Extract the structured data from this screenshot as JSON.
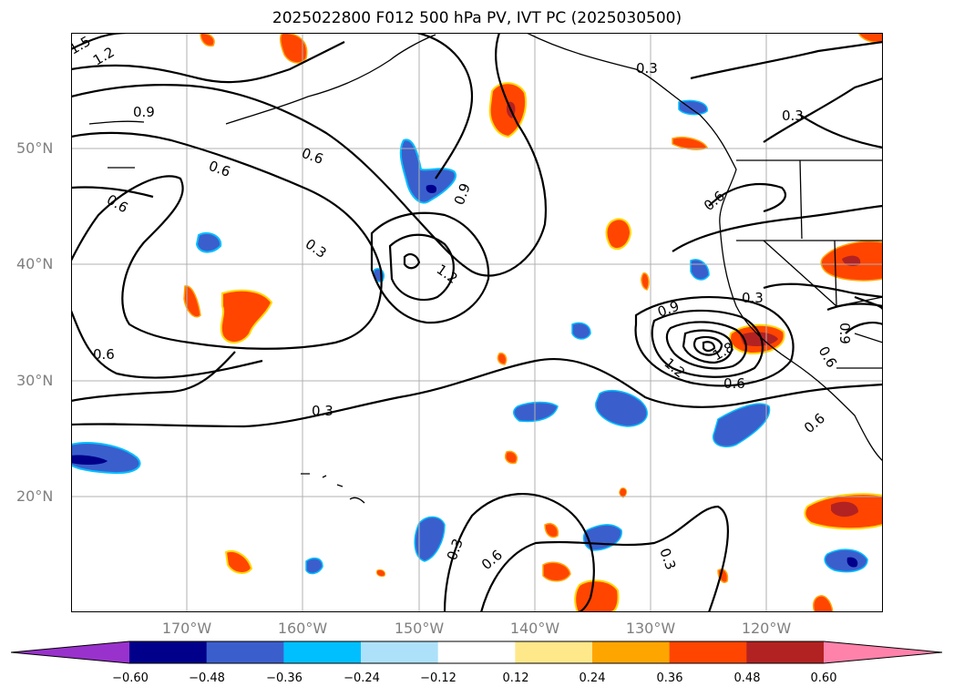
{
  "title": "2025022800 F012 500 hPa PV, IVT PC (2025030500)",
  "lat_labels": [
    "50°N",
    "40°N",
    "30°N",
    "20°N"
  ],
  "lon_labels": [
    "170°W",
    "160°W",
    "150°W",
    "140°W",
    "130°W",
    "120°W"
  ],
  "colorbar": {
    "colors": [
      "#9932CC",
      "#00008B",
      "#3A5FCD",
      "#00BFFF",
      "#ADE1FA",
      "#FFFFFF",
      "#FFE88A",
      "#FFA500",
      "#FF4500",
      "#B22222",
      "#FF82AB"
    ],
    "tick_labels": [
      "−0.60",
      "−0.48",
      "−0.36",
      "−0.24",
      "−0.12",
      "0.12",
      "0.24",
      "0.36",
      "0.48",
      "0.60"
    ]
  },
  "contour_labels": [
    "1.5",
    "1.2",
    "0.9",
    "0.6",
    "0.6",
    "0.6",
    "0.3",
    "0.9",
    "1.2",
    "0.6",
    "0.3",
    "0.3",
    "0.9",
    "1.2",
    "1.8",
    "0.6",
    "0.3",
    "0.3",
    "0.6",
    "0.9",
    "0.6",
    "0.6",
    "0.3",
    "0.6",
    "0.3"
  ],
  "colors": {
    "contour": "#000000",
    "grid": "#b0b0b0",
    "tick_label": "#808080"
  }
}
